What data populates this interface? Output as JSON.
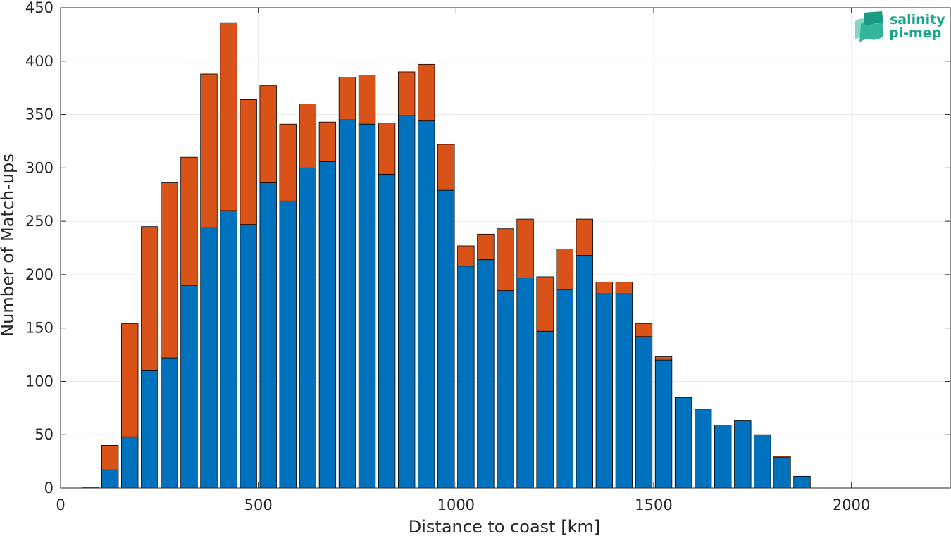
{
  "chart_data": {
    "type": "bar",
    "stacked": true,
    "xlabel": "Distance to coast [km]",
    "ylabel": "Number of Match-ups",
    "xlim": [
      0,
      2250
    ],
    "ylim": [
      0,
      450
    ],
    "xticks": [
      0,
      500,
      1000,
      1500,
      2000
    ],
    "yticks": [
      0,
      50,
      100,
      150,
      200,
      250,
      300,
      350,
      400,
      450
    ],
    "grid": true,
    "bin_width": 50,
    "x": [
      75,
      125,
      175,
      225,
      275,
      325,
      375,
      425,
      475,
      525,
      575,
      625,
      675,
      725,
      775,
      825,
      875,
      925,
      975,
      1025,
      1075,
      1125,
      1175,
      1225,
      1275,
      1325,
      1375,
      1425,
      1475,
      1525,
      1575,
      1625,
      1675,
      1725,
      1775,
      1825,
      1875
    ],
    "series": [
      {
        "color": "#0072bd",
        "values": [
          1,
          17,
          48,
          110,
          122,
          190,
          244,
          260,
          247,
          286,
          269,
          300,
          306,
          345,
          341,
          294,
          349,
          344,
          279,
          208,
          214,
          185,
          197,
          147,
          186,
          218,
          182,
          182,
          142,
          120,
          85,
          74,
          59,
          63,
          50,
          29,
          11
        ]
      },
      {
        "color": "#d95319",
        "values": [
          0,
          23,
          106,
          135,
          164,
          120,
          144,
          176,
          117,
          91,
          72,
          60,
          37,
          40,
          46,
          48,
          41,
          53,
          43,
          19,
          24,
          58,
          55,
          51,
          38,
          34,
          11,
          11,
          12,
          3,
          0,
          0,
          0,
          0,
          0,
          1,
          0
        ]
      }
    ]
  },
  "logo": {
    "line1": "salinity",
    "line2": "pi-mep",
    "color": "#1aa58f"
  }
}
